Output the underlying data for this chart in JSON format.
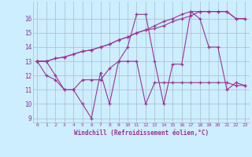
{
  "xlabel": "Windchill (Refroidissement éolien,°C)",
  "xlim": [
    -0.5,
    23.5
  ],
  "ylim": [
    8.7,
    17.2
  ],
  "yticks": [
    9,
    10,
    11,
    12,
    13,
    14,
    15,
    16
  ],
  "xticks": [
    0,
    1,
    2,
    3,
    4,
    5,
    6,
    7,
    8,
    9,
    10,
    11,
    12,
    13,
    14,
    15,
    16,
    17,
    18,
    19,
    20,
    21,
    22,
    23
  ],
  "bg_color": "#cceeff",
  "grid_color": "#aabbcc",
  "line_color": "#993399",
  "series": [
    [
      13.0,
      13.0,
      12.0,
      11.0,
      11.0,
      10.0,
      9.0,
      12.2,
      10.0,
      13.0,
      13.0,
      13.0,
      10.0,
      11.5,
      11.5,
      11.5,
      11.5,
      11.5,
      11.5,
      11.5,
      11.5,
      11.5,
      11.3,
      11.3
    ],
    [
      13.0,
      12.0,
      11.7,
      11.0,
      11.0,
      11.7,
      11.7,
      11.7,
      12.5,
      13.0,
      14.0,
      16.3,
      16.3,
      13.0,
      10.0,
      12.8,
      12.8,
      16.5,
      16.0,
      14.0,
      14.0,
      11.0,
      11.5,
      11.3
    ],
    [
      13.0,
      13.0,
      13.2,
      13.3,
      13.5,
      13.7,
      13.8,
      14.0,
      14.2,
      14.5,
      14.7,
      15.0,
      15.2,
      15.5,
      15.8,
      16.0,
      16.3,
      16.5,
      16.5,
      16.5,
      16.5,
      16.5,
      16.0,
      16.0
    ],
    [
      13.0,
      13.0,
      13.2,
      13.3,
      13.5,
      13.7,
      13.8,
      14.0,
      14.2,
      14.5,
      14.7,
      15.0,
      15.2,
      15.3,
      15.5,
      15.8,
      16.0,
      16.2,
      16.5,
      16.5,
      16.5,
      16.5,
      16.0,
      16.0
    ]
  ]
}
